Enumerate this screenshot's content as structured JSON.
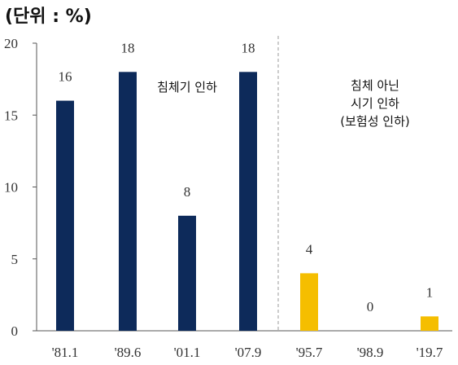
{
  "chart_data": {
    "type": "bar",
    "unit_label": "(단위 : %)",
    "categories": [
      "'81.1",
      "'89.6",
      "'01.1",
      "'07.9",
      "'95.7",
      "'98.9",
      "'19.7"
    ],
    "values": [
      16,
      18,
      8,
      18,
      4,
      0,
      1
    ],
    "bar_colors": [
      "#0d2a5a",
      "#0d2a5a",
      "#0d2a5a",
      "#0d2a5a",
      "#f5be00",
      "#f5be00",
      "#f5be00"
    ],
    "yticks": [
      0,
      5,
      10,
      15,
      20
    ],
    "ylim": [
      0,
      20
    ],
    "annotations": [
      {
        "text": [
          "침체기 인하"
        ]
      },
      {
        "text": [
          "침체 아닌",
          "시기 인하",
          "(보험성 인하)"
        ]
      }
    ],
    "grid": false
  }
}
